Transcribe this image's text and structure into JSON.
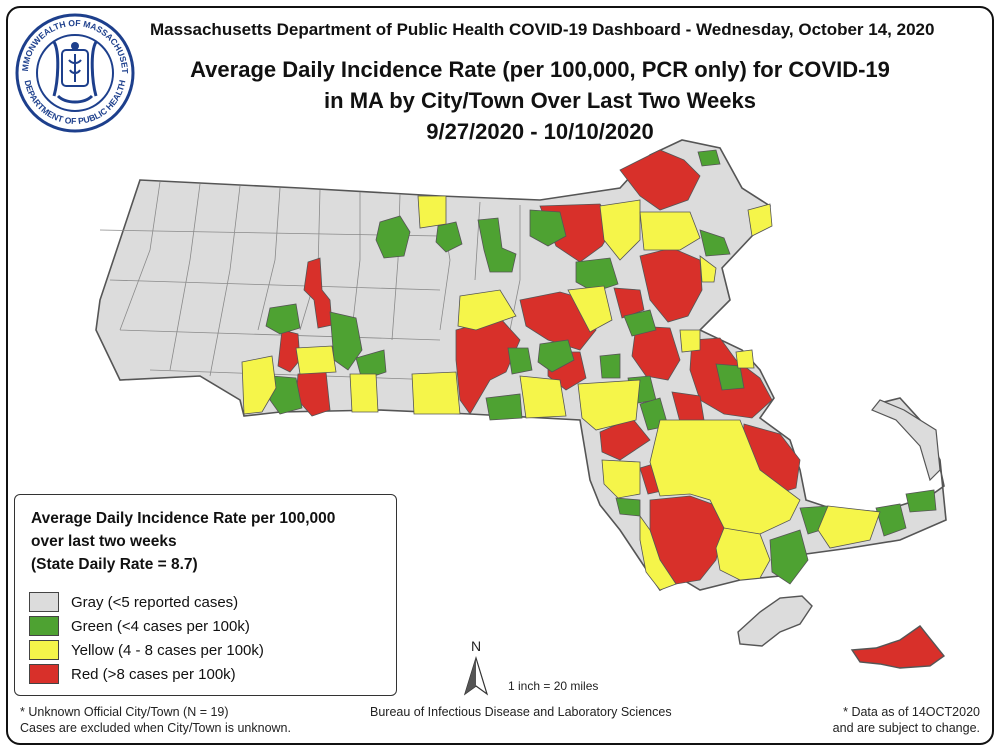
{
  "header": {
    "dashboard_title": "Massachusetts Department of Public Health COVID-19 Dashboard - Wednesday, October 14, 2020",
    "map_title_line1": "Average Daily Incidence Rate (per 100,000, PCR only) for COVID-19",
    "map_title_line2": "in MA by City/Town Over Last Two Weeks",
    "map_title_line3": "9/27/2020 - 10/10/2020"
  },
  "seal": {
    "top_text": "COMMONWEALTH OF MASSACHUSETTS",
    "bottom_text": "DEPARTMENT OF PUBLIC HEALTH"
  },
  "legend": {
    "title_line1": "Average Daily Incidence Rate per 100,000",
    "title_line2": "over last two weeks",
    "title_line3": "(State Daily Rate = 8.7)",
    "items": [
      {
        "label": "Gray (<5 reported cases)",
        "color": "#dcdcdc"
      },
      {
        "label": "Green (<4 cases per 100k)",
        "color": "#4ea232"
      },
      {
        "label": "Yellow (4 - 8 cases per 100k)",
        "color": "#f5f54a"
      },
      {
        "label": "Red (>8 cases per 100k)",
        "color": "#d8302a"
      }
    ]
  },
  "map": {
    "north_label": "N",
    "scale_text": "1 inch = 20 miles",
    "colors": {
      "gray": "#dcdcdc",
      "green": "#4ea232",
      "yellow": "#f5f54a",
      "red": "#d8302a",
      "border": "#8a8a8a"
    }
  },
  "footer": {
    "unknown_line1": "* Unknown Official City/Town (N = 19)",
    "unknown_line2": "Cases are excluded when City/Town is unknown.",
    "bureau": "Bureau of Infectious Disease and Laboratory Sciences",
    "data_line1": "* Data as of 14OCT2020",
    "data_line2": "and are subject to change."
  }
}
